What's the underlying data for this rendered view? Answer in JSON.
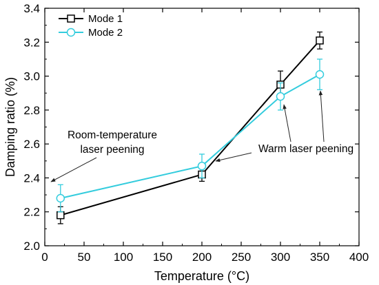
{
  "chart_data": {
    "type": "line",
    "xlabel": "Temperature (°C)",
    "ylabel": "Damping ratio (%)",
    "xlim": [
      0,
      400
    ],
    "ylim": [
      2.0,
      3.4
    ],
    "xticks": [
      0,
      50,
      100,
      150,
      200,
      250,
      300,
      350,
      400
    ],
    "yticks": [
      2.0,
      2.2,
      2.4,
      2.6,
      2.8,
      3.0,
      3.2,
      3.4
    ],
    "x": [
      20,
      200,
      300,
      350
    ],
    "grid": false,
    "legend_position": "top-left",
    "series": [
      {
        "name": "Mode 1",
        "values": [
          2.18,
          2.42,
          2.95,
          3.21
        ],
        "errors": [
          0.05,
          0.04,
          0.08,
          0.05
        ],
        "color": "#000000",
        "marker": "square"
      },
      {
        "name": "Mode 2",
        "values": [
          2.28,
          2.47,
          2.88,
          3.01
        ],
        "errors": [
          0.08,
          0.07,
          0.08,
          0.09
        ],
        "color": "#33ccdd",
        "marker": "circle"
      }
    ],
    "annotations": [
      {
        "lines": [
          "Room-temperature",
          "laser peening"
        ]
      },
      {
        "lines": [
          "Warm laser peening"
        ]
      }
    ]
  }
}
